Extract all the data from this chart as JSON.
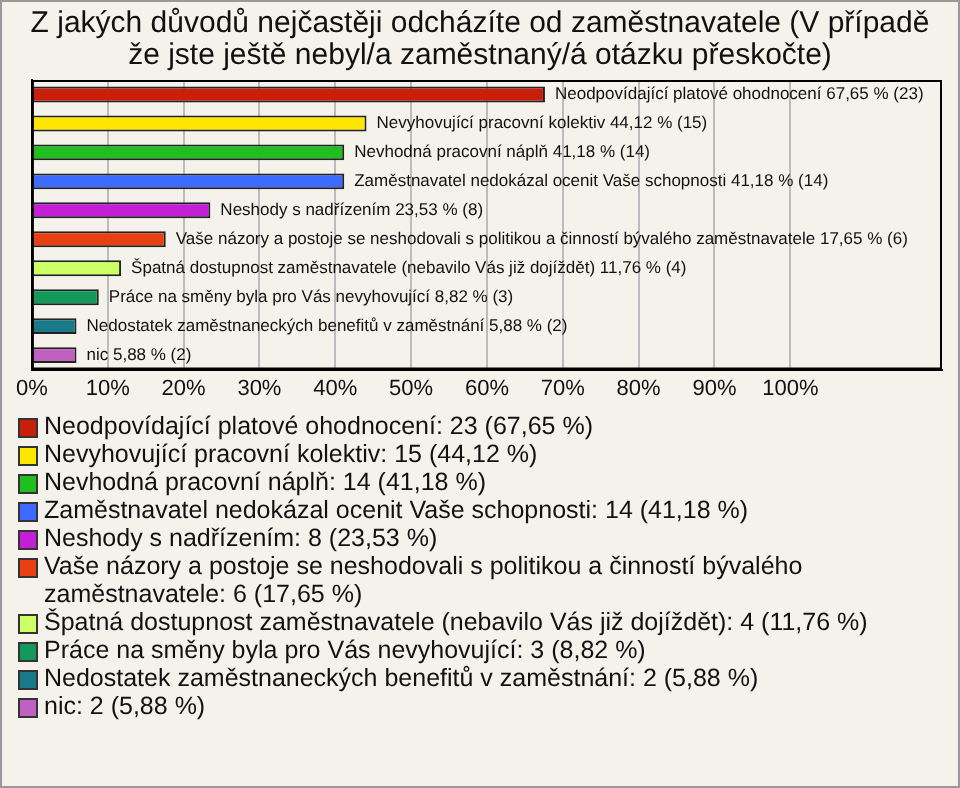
{
  "chart_data": {
    "type": "bar",
    "orientation": "horizontal",
    "title": "Z jakých důvodů nejčastěji odcházíte od zaměstnavatele (V případě že jste ještě nebyl/a zaměstnaný/á otázku přeskočte)",
    "categories": [
      "Neodpovídající platové ohodnocení",
      "Nevyhovující pracovní kolektiv",
      "Nevhodná pracovní náplň",
      "Zaměstnavatel nedokázal ocenit Vaše schopnosti",
      "Neshody s nadřízením",
      "Vaše názory a postoje se neshodovali s politikou a činností bývalého zaměstnavatele",
      "Špatná dostupnost zaměstnavatele (nebavilo Vás již dojíždět)",
      "Práce na směny byla pro Vás nevyhovující",
      "Nedostatek zaměstnaneckých benefitů v zaměstnání",
      "nic"
    ],
    "values": [
      67.65,
      44.12,
      41.18,
      41.18,
      23.53,
      17.65,
      11.76,
      8.82,
      5.88,
      5.88
    ],
    "value_labels": [
      "67,65 % (23)",
      "44,12 % (15)",
      "41,18 % (14)",
      "41,18 % (14)",
      "23,53 % (8)",
      "17,65 % (6)",
      "11,76 % (4)",
      "8,82 % (3)",
      "5,88 % (2)",
      "5,88 % (2)"
    ],
    "colors": [
      "#c81e0a",
      "#ffe600",
      "#1fbf1f",
      "#3d6bff",
      "#c21fd6",
      "#e84010",
      "#ccff66",
      "#139a5a",
      "#1a7a8a",
      "#c060c0"
    ],
    "xlim": [
      0,
      120
    ],
    "xticks": [
      {
        "value": 0,
        "label": "0%"
      },
      {
        "value": 10,
        "label": "10%"
      },
      {
        "value": 20,
        "label": "20%"
      },
      {
        "value": 30,
        "label": "30%"
      },
      {
        "value": 40,
        "label": "40%"
      },
      {
        "value": 50,
        "label": "50%"
      },
      {
        "value": 60,
        "label": "60%"
      },
      {
        "value": 70,
        "label": "70%"
      },
      {
        "value": 80,
        "label": "80%"
      },
      {
        "value": 90,
        "label": "90%"
      },
      {
        "value": 100,
        "label": "100%"
      }
    ],
    "grid": "x",
    "annotations": [
      "Neodpovídající platové ohodnocení: 23 (67,65 %)",
      "Nevyhovující pracovní kolektiv: 15 (44,12 %)",
      "Nevhodná pracovní náplň: 14 (41,18 %)",
      "Zaměstnavatel nedokázal ocenit Vaše schopnosti: 14 (41,18 %)",
      "Neshody s nadřízením: 8 (23,53 %)",
      "Vaše názory a postoje se neshodovali s politikou a činností bývalého zaměstnavatele: 6 (17,65 %)",
      "Špatná dostupnost zaměstnavatele (nebavilo Vás již dojíždět): 4 (11,76 %)",
      "Práce na směny byla pro Vás nevyhovující: 3 (8,82 %)",
      "Nedostatek zaměstnaneckých benefitů v zaměstnání: 2 (5,88 %)",
      "nic: 2 (5,88 %)"
    ]
  }
}
